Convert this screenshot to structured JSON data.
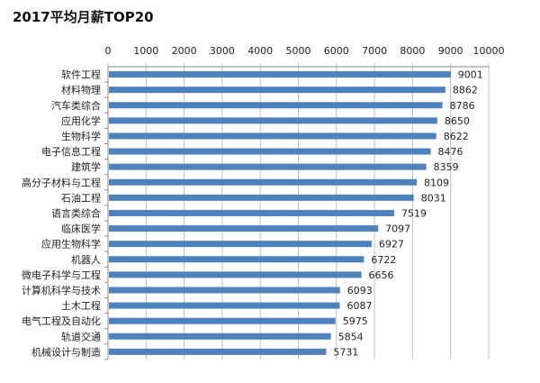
{
  "chart_data": {
    "type": "bar",
    "orientation": "horizontal",
    "title": "2017平均月薪TOP20",
    "categories": [
      "软件工程",
      "材料物理",
      "汽车类综合",
      "应用化学",
      "生物科学",
      "电子信息工程",
      "建筑学",
      "高分子材料与工程",
      "石油工程",
      "语言类综合",
      "临床医学",
      "应用生物科学",
      "机器人",
      "微电子科学与工程",
      "计算机科学与技术",
      "土木工程",
      "电气工程及自动化",
      "轨道交通",
      "机械设计与制造"
    ],
    "values": [
      9001,
      8862,
      8786,
      8650,
      8622,
      8476,
      8359,
      8109,
      8031,
      7519,
      7097,
      6927,
      6722,
      6656,
      6093,
      6087,
      5975,
      5854,
      5731
    ],
    "xlim": [
      0,
      10000
    ],
    "xticks": [
      "0",
      "1000",
      "2000",
      "3000",
      "4000",
      "5000",
      "6000",
      "7000",
      "8000",
      "9000",
      "10000"
    ],
    "xaxis_position": "top",
    "grid": true,
    "bar_color": "#4f81bd",
    "data_labels": true
  }
}
